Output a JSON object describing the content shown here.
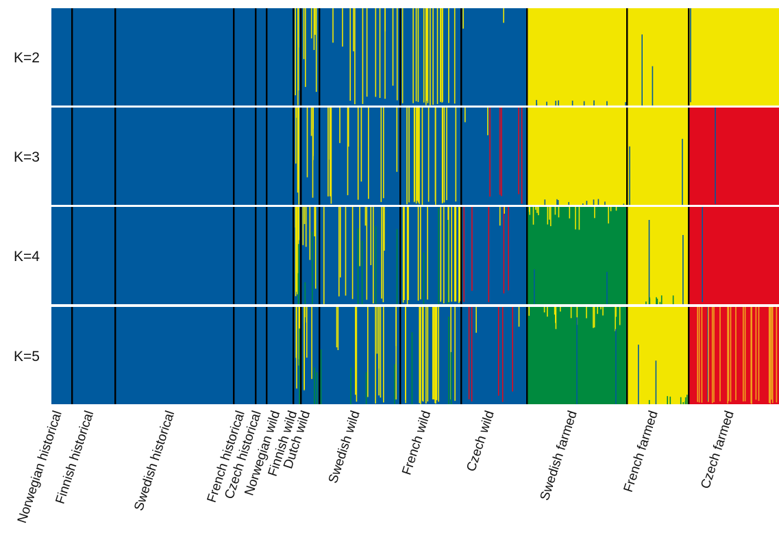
{
  "chart_data": {
    "type": "bar",
    "subtype": "stacked-admixture-structure-plot",
    "rows": [
      "K=2",
      "K=3",
      "K=4",
      "K=5"
    ],
    "populations": [
      {
        "name": "Norwegian historical",
        "n": 10
      },
      {
        "name": "Finnish historical",
        "n": 24
      },
      {
        "name": "Swedish historical",
        "n": 63
      },
      {
        "name": "French historical",
        "n": 12
      },
      {
        "name": "Czech historical",
        "n": 5
      },
      {
        "name": "Norwegian wild",
        "n": 14
      },
      {
        "name": "Finnish wild",
        "n": 4
      },
      {
        "name": "Dutch wild",
        "n": 10
      },
      {
        "name": "Swedish wild",
        "n": 43
      },
      {
        "name": "French wild",
        "n": 32
      },
      {
        "name": "Czech wild",
        "n": 35
      },
      {
        "name": "Swedish farmed",
        "n": 56
      },
      {
        "name": "French farmed",
        "n": 34
      },
      {
        "name": "Czech farmed",
        "n": 50
      }
    ],
    "colors": {
      "blue": "#005a9e",
      "yellow": "#f2e600",
      "red": "#e10b1e",
      "green": "#008a3e",
      "orange": "#f0a51e",
      "separator": "#000000",
      "row_gap": "#ffffff"
    },
    "dominant_cluster": {
      "K=2": [
        "blue",
        "blue",
        "blue",
        "blue",
        "blue",
        "blue",
        "blue",
        "blue",
        "blue",
        "blue",
        "blue",
        "yellow",
        "yellow",
        "yellow"
      ],
      "K=3": [
        "blue",
        "blue",
        "blue",
        "blue",
        "blue",
        "blue",
        "blue",
        "blue",
        "blue",
        "blue",
        "blue",
        "yellow",
        "yellow",
        "red"
      ],
      "K=4": [
        "blue",
        "blue",
        "blue",
        "blue",
        "blue",
        "blue",
        "blue",
        "blue",
        "blue",
        "blue",
        "blue",
        "green",
        "yellow",
        "red"
      ],
      "K=5": [
        "blue",
        "blue",
        "blue",
        "blue",
        "blue",
        "blue",
        "blue",
        "blue",
        "blue",
        "blue",
        "blue",
        "green",
        "yellow",
        "red"
      ]
    },
    "ylim": [
      0,
      1
    ],
    "grid": false,
    "legend": "none"
  }
}
